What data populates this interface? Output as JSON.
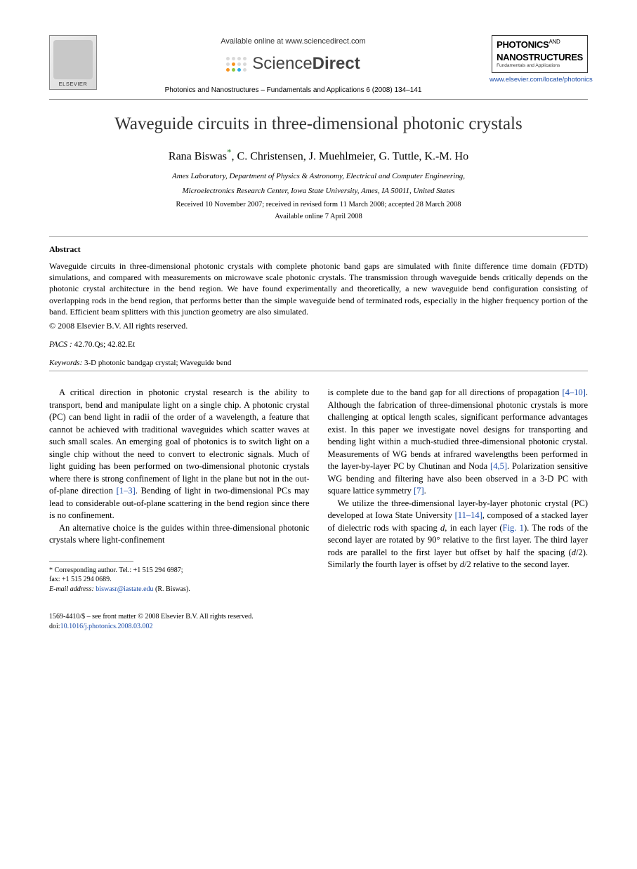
{
  "header": {
    "elsevier_label": "ELSEVIER",
    "available_online": "Available online at www.sciencedirect.com",
    "sciencedirect_a": "Science",
    "sciencedirect_b": "Direct",
    "sd_dot_colors": [
      "#d9d9d9",
      "#d9d9d9",
      "#d9d9d9",
      "#d9d9d9",
      "#d9d9d9",
      "#f7931e",
      "#d9d9d9",
      "#d9d9d9",
      "#f7931e",
      "#8cc63f",
      "#29abe2",
      "#d9d9d9"
    ],
    "journal_ref": "Photonics and Nanostructures – Fundamentals and Applications 6 (2008) 134–141",
    "journal_logo_line1a": "PHOTONICS",
    "journal_logo_and": "AND",
    "journal_logo_line2": "NANOSTRUCTURES",
    "journal_logo_sub": "Fundamentals and Applications",
    "journal_url": "www.elsevier.com/locate/photonics"
  },
  "article": {
    "title": "Waveguide circuits in three-dimensional photonic crystals",
    "authors_pre": "Rana Biswas",
    "corr_mark": "*",
    "authors_rest": ", C. Christensen, J. Muehlmeier, G. Tuttle, K.-M. Ho",
    "affiliation_line1": "Ames Laboratory, Department of Physics & Astronomy, Electrical and Computer Engineering,",
    "affiliation_line2": "Microelectronics Research Center, Iowa State University, Ames, IA 50011, United States",
    "dates_line1": "Received 10 November 2007; received in revised form 11 March 2008; accepted 28 March 2008",
    "dates_line2": "Available online 7 April 2008"
  },
  "abstract": {
    "heading": "Abstract",
    "text": "Waveguide circuits in three-dimensional photonic crystals with complete photonic band gaps are simulated with finite difference time domain (FDTD) simulations, and compared with measurements on microwave scale photonic crystals. The transmission through waveguide bends critically depends on the photonic crystal architecture in the bend region. We have found experimentally and theoretically, a new waveguide bend configuration consisting of overlapping rods in the bend region, that performs better than the simple waveguide bend of terminated rods, especially in the higher frequency portion of the band. Efficient beam splitters with this junction geometry are also simulated.",
    "copyright": "© 2008 Elsevier B.V. All rights reserved.",
    "pacs_label": "PACS :",
    "pacs_value": " 42.70.Qs; 42.82.Et",
    "keywords_label": "Keywords:",
    "keywords_value": " 3-D photonic bandgap crystal; Waveguide bend"
  },
  "body": {
    "col1_p1_a": "A critical direction in photonic crystal research is the ability to transport, bend and manipulate light on a single chip. A photonic crystal (PC) can bend light in radii of the order of a wavelength, a feature that cannot be achieved with traditional waveguides which scatter waves at such small scales. An emerging goal of photonics is to switch light on a single chip without the need to convert to electronic signals. Much of light guiding has been performed on two-dimensional photonic crystals where there is strong confinement of light in the plane but not in the out-of-plane direction ",
    "col1_p1_ref": "[1–3]",
    "col1_p1_b": ". Bending of light in two-dimensional PCs may lead to considerable out-of-plane scattering in the bend region since there is no confinement.",
    "col1_p2": "An alternative choice is the guides within three-dimensional photonic crystals where light-confinement",
    "col2_p1_a": "is complete due to the band gap for all directions of propagation ",
    "col2_p1_ref1": "[4–10]",
    "col2_p1_b": ". Although the fabrication of three-dimensional photonic crystals is more challenging at optical length scales, significant performance advantages exist. In this paper we investigate novel designs for transporting and bending light within a much-studied three-dimensional photonic crystal. Measurements of WG bends at infrared wavelengths been performed in the layer-by-layer PC by Chutinan and Noda ",
    "col2_p1_ref2": "[4,5]",
    "col2_p1_c": ". Polarization sensitive WG bending and filtering have also been observed in a 3-D PC with square lattice symmetry ",
    "col2_p1_ref3": "[7]",
    "col2_p1_d": ".",
    "col2_p2_a": "We utilize the three-dimensional layer-by-layer photonic crystal (PC) developed at Iowa State University ",
    "col2_p2_ref1": "[11–14]",
    "col2_p2_b": ", composed of a stacked layer of dielectric rods with spacing ",
    "col2_p2_i1": "d",
    "col2_p2_c": ", in each layer (",
    "col2_p2_ref2": "Fig. 1",
    "col2_p2_d": "). The rods of the second layer are rotated by 90° relative to the first layer. The third layer rods are parallel to the first layer but offset by half the spacing (",
    "col2_p2_i2": "d",
    "col2_p2_e": "/2). Similarly the fourth layer is offset by ",
    "col2_p2_i3": "d",
    "col2_p2_f": "/2 relative to the second layer."
  },
  "footnote": {
    "corr": "* Corresponding author. Tel.: +1 515 294 6987;",
    "fax": "fax: +1 515 294 0689.",
    "email_label": "E-mail address:",
    "email": " biswasr@iastate.edu",
    "email_tail": " (R. Biswas)."
  },
  "footer": {
    "line1": "1569-4410/$ – see front matter © 2008 Elsevier B.V. All rights reserved.",
    "doi_label": "doi:",
    "doi": "10.1016/j.photonics.2008.03.002"
  }
}
